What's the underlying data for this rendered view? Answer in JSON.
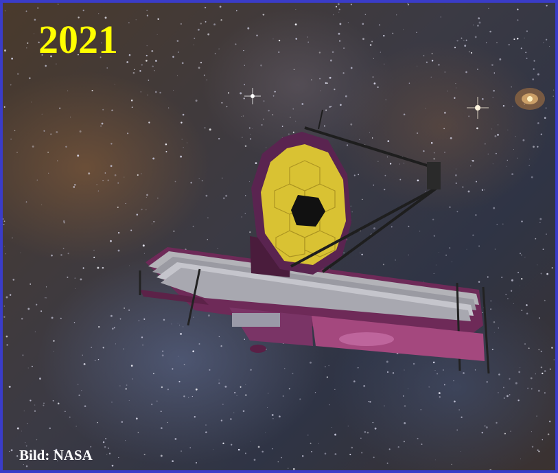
{
  "image": {
    "year_label": "2021",
    "credit_label": "Bild: NASA"
  },
  "colors": {
    "frame": "#3a3cc8",
    "year_text": "#ffff00",
    "credit_text": "#ffffff",
    "mirror_gold": "#d9c233",
    "sunshield": "#8a3f6e"
  }
}
